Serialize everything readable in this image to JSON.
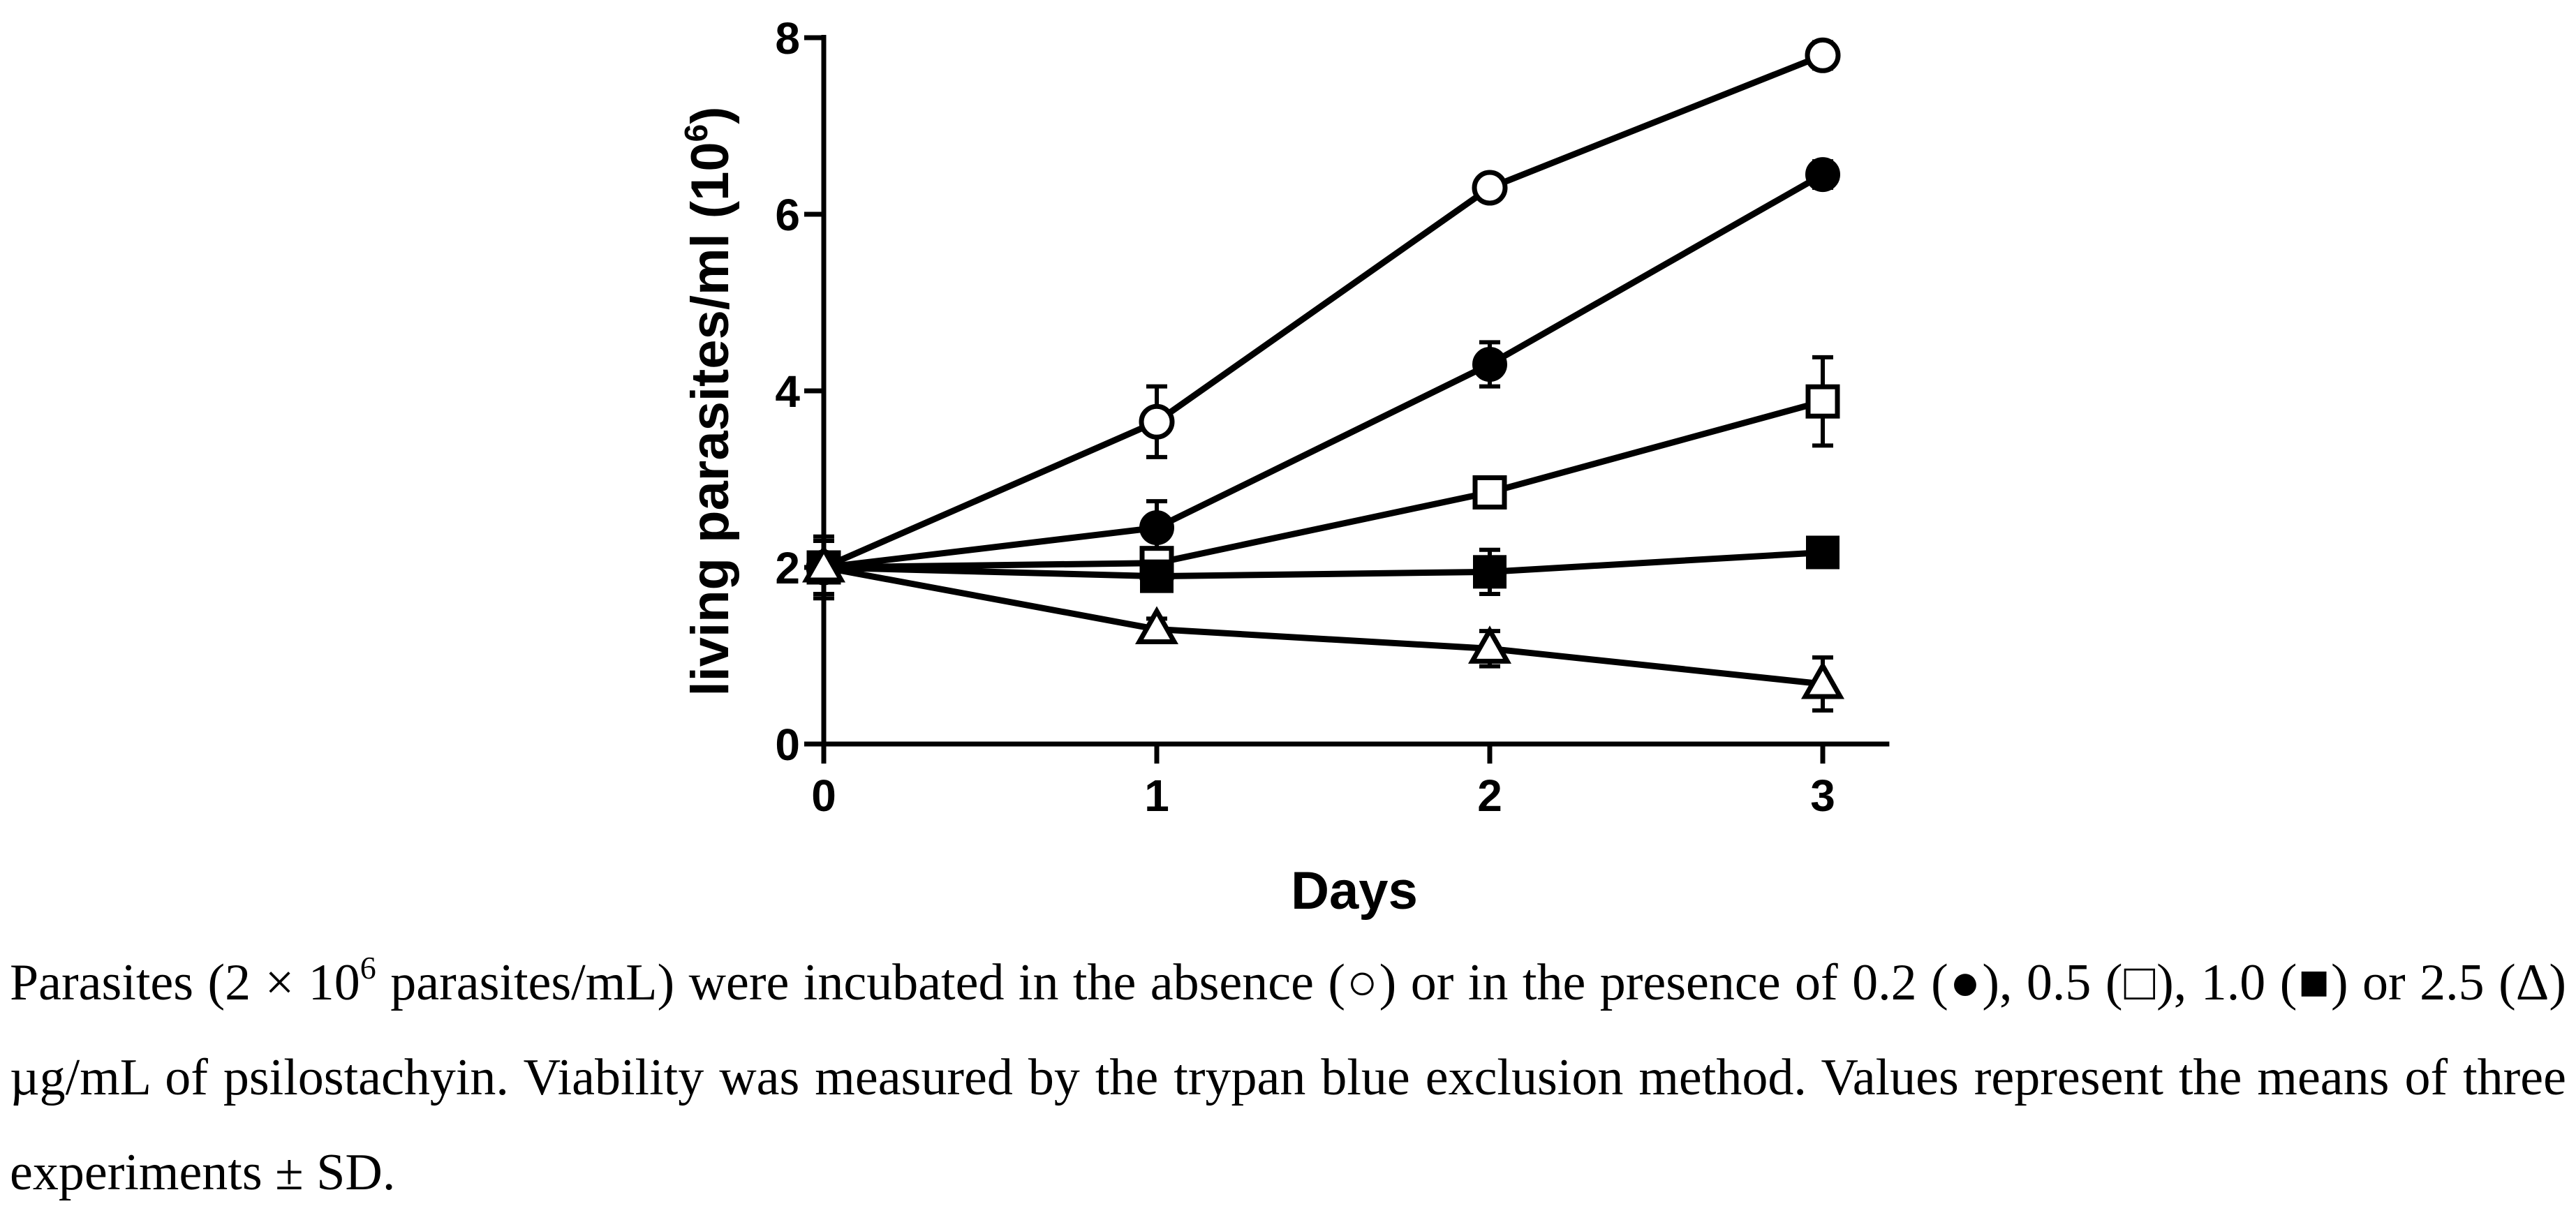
{
  "chart_data": {
    "type": "line",
    "xlabel": "Days",
    "ylabel": "living parasites/ml (10",
    "ylabel_exponent": "6",
    "ylabel_suffix": ")",
    "x": [
      0,
      1,
      2,
      3
    ],
    "xticks": [
      "0",
      "1",
      "2",
      "3"
    ],
    "yticks": [
      "0",
      "2",
      "4",
      "6",
      "8"
    ],
    "xlim": [
      0,
      3.2
    ],
    "ylim": [
      0,
      8
    ],
    "series": [
      {
        "name": "absence",
        "marker": "open-circle",
        "values": [
          2.0,
          3.65,
          6.3,
          7.8
        ],
        "sd": [
          0.35,
          0.4,
          0.12,
          0.15
        ]
      },
      {
        "name": "0.2 µg/mL",
        "marker": "filled-circle",
        "values": [
          2.0,
          2.45,
          4.3,
          6.45
        ],
        "sd": [
          0.3,
          0.3,
          0.25,
          0.15
        ]
      },
      {
        "name": "0.5 µg/mL",
        "marker": "open-square",
        "values": [
          2.0,
          2.05,
          2.85,
          3.88
        ],
        "sd": [
          0.3,
          0.12,
          0.1,
          0.5
        ]
      },
      {
        "name": "1.0 µg/mL",
        "marker": "filled-square",
        "values": [
          2.0,
          1.9,
          1.95,
          2.17
        ],
        "sd": [
          0.3,
          0.1,
          0.25,
          0.12
        ]
      },
      {
        "name": "2.5 µg/mL",
        "marker": "open-triangle",
        "values": [
          2.0,
          1.3,
          1.08,
          0.68
        ],
        "sd": [
          0.3,
          0.12,
          0.2,
          0.3
        ]
      }
    ]
  },
  "caption": {
    "part1": "Parasites (2 × 10",
    "part1_exponent": "6",
    "part2": " parasites/mL) were incubated in the absence (○) or in the presence of 0.2 (●), 0.5 (□), 1.0 (■) or 2.5 (Δ) µg/mL of psilostachyin. Viability was measured by the trypan blue exclusion method. Values represent the means of three experiments ± SD."
  }
}
